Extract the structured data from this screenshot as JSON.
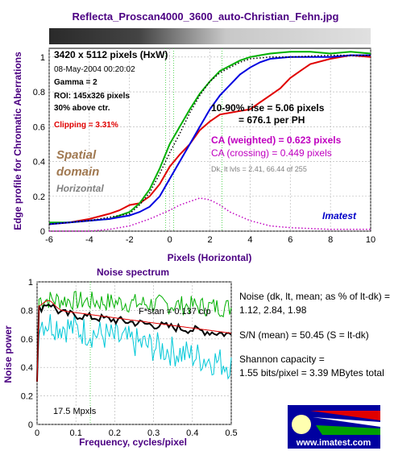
{
  "colors": {
    "frame_bg": "#ffffff",
    "axis_label": "#4b0082",
    "purple_title": "#4b0082",
    "red": "#e00000",
    "green": "#00b000",
    "blue": "#0000e0",
    "black": "#000000",
    "cyan": "#00c8d8",
    "magenta": "#c000c0",
    "spatial": "#a07850",
    "imatest_blue": "#0000c8"
  },
  "chart_data": [
    {
      "type": "line",
      "title": "Reflecta_Proscan4000_3600_auto-Christian_Fehn.jpg",
      "xlabel": "Pixels (Horizontal)",
      "ylabel": "Edge profile for Chromatic Aberrations",
      "xlim": [
        -6,
        10
      ],
      "ylim": [
        0,
        1.05
      ],
      "xticks": [
        "-6",
        "-4",
        "-2",
        "0",
        "2",
        "4",
        "6",
        "8",
        "10"
      ],
      "yticks": [
        "0",
        "0.2",
        "0.4",
        "0.6",
        "0.8",
        "1"
      ],
      "grid": true,
      "series": [
        {
          "color": "red",
          "x": [
            -6,
            -5,
            -4,
            -3,
            -2.5,
            -2,
            -1.5,
            -1,
            -0.5,
            0,
            0.5,
            1,
            1.5,
            2,
            2.5,
            3,
            3.5,
            4,
            4.5,
            5,
            5.5,
            6,
            6.5,
            7,
            8,
            9,
            10
          ],
          "y": [
            0.04,
            0.05,
            0.07,
            0.1,
            0.12,
            0.15,
            0.16,
            0.2,
            0.27,
            0.37,
            0.44,
            0.5,
            0.58,
            0.63,
            0.67,
            0.68,
            0.69,
            0.7,
            0.74,
            0.78,
            0.82,
            0.88,
            0.92,
            0.96,
            0.99,
            1.01,
            1.0
          ]
        },
        {
          "color": "green",
          "x": [
            -6,
            -5,
            -4,
            -3,
            -2,
            -1.5,
            -1,
            -0.5,
            0,
            0.5,
            1,
            1.5,
            2,
            2.5,
            3,
            3.5,
            4,
            4.5,
            5,
            6,
            7,
            8,
            9,
            10
          ],
          "y": [
            0.05,
            0.05,
            0.06,
            0.07,
            0.11,
            0.16,
            0.24,
            0.36,
            0.5,
            0.6,
            0.7,
            0.79,
            0.86,
            0.92,
            0.95,
            0.98,
            1.0,
            1.01,
            1.02,
            1.03,
            1.03,
            1.02,
            1.03,
            1.02
          ]
        },
        {
          "color": "blue",
          "x": [
            -6,
            -5,
            -4,
            -3,
            -2,
            -1.5,
            -1,
            -0.5,
            0,
            0.5,
            1,
            1.5,
            2,
            2.5,
            3,
            3.5,
            4,
            4.5,
            5,
            6,
            7,
            8,
            9,
            10
          ],
          "y": [
            0.04,
            0.05,
            0.06,
            0.07,
            0.09,
            0.11,
            0.14,
            0.2,
            0.3,
            0.4,
            0.5,
            0.6,
            0.7,
            0.78,
            0.84,
            0.9,
            0.94,
            0.97,
            0.99,
            1.0,
            1.0,
            1.0,
            1.01,
            1.01
          ]
        },
        {
          "color": "black",
          "dotted": true,
          "x": [
            -6,
            -4,
            -2,
            -1.5,
            -1,
            -0.5,
            0,
            0.5,
            1,
            1.5,
            2,
            2.5,
            3,
            3.5,
            4,
            5,
            6,
            8,
            10
          ],
          "y": [
            0.04,
            0.06,
            0.1,
            0.15,
            0.22,
            0.33,
            0.45,
            0.56,
            0.68,
            0.78,
            0.86,
            0.91,
            0.94,
            0.97,
            0.99,
            1.0,
            1.0,
            1.01,
            1.01
          ]
        },
        {
          "color": "magenta",
          "dotted": true,
          "x": [
            -6,
            -4,
            -3,
            -2,
            -1,
            0,
            0.5,
            1,
            1.5,
            2,
            2.5,
            3,
            4,
            5,
            6,
            8,
            10
          ],
          "y": [
            0.0,
            0.0,
            0.01,
            0.03,
            0.07,
            0.12,
            0.15,
            0.17,
            0.19,
            0.18,
            0.15,
            0.11,
            0.06,
            0.03,
            0.02,
            0.01,
            0.01
          ]
        }
      ],
      "annotations": {
        "dims": "3420 x 5112 pixels (HxW)",
        "date": "08-May-2004 00:20:02",
        "gamma": "Gamma = 2",
        "roi": "ROI: 145x326 pixels",
        "above": "30% above ctr.",
        "clipping": "Clipping =  3.31%",
        "spatial1": "Spatial",
        "spatial2": "domain",
        "horizontal": "Horizontal",
        "rise1": "10-90% rise = 5.06 pixels",
        "rise2": "= 676.1 per PH",
        "ca_weighted": "CA (weighted) = 0.623 pixels",
        "ca_crossing": "CA (crossing) = 0.449 pixels",
        "dk": "Dk, lt lvls = 2.41, 66.44 of 255",
        "imatest": "Imatest"
      }
    },
    {
      "type": "line",
      "title": "Noise spectrum",
      "xlabel": "Frequency, cycles/pixel",
      "ylabel": "Noise power",
      "xlim": [
        0,
        0.5
      ],
      "ylim": [
        0,
        1
      ],
      "xticks": [
        "0",
        "0.1",
        "0.2",
        "0.3",
        "0.4",
        "0.5"
      ],
      "yticks": [
        "0",
        "0.2",
        "0.4",
        "0.6",
        "0.8",
        "1"
      ],
      "grid": true,
      "series": [
        {
          "color": "green",
          "base": [
            0.88,
            0.82
          ],
          "amp": 0.07
        },
        {
          "color": "cyan",
          "base": [
            0.73,
            0.42
          ],
          "amp": 0.11
        },
        {
          "color": "black",
          "base": [
            0.8,
            0.63
          ],
          "amp": 0.03
        },
        {
          "color": "red",
          "base": [
            0.82,
            0.64
          ],
          "amp": 0.0
        }
      ],
      "annotations": {
        "fstar": "F*stan = 0.137 c/p",
        "mpxls": "17.5 Mpxls"
      }
    }
  ],
  "side_text": {
    "noise1": "Noise (dk, lt, mean; as % of lt-dk) =",
    "noise2": "1.12,  2.84,  1.98",
    "sn": "S/N (mean) = 50.45  (S = lt-dk)",
    "shannon1": "Shannon capacity =",
    "shannon2": "1.55 bits/pixel = 3.39 MBytes total"
  },
  "logo": {
    "url_text": "www.imatest.com"
  }
}
